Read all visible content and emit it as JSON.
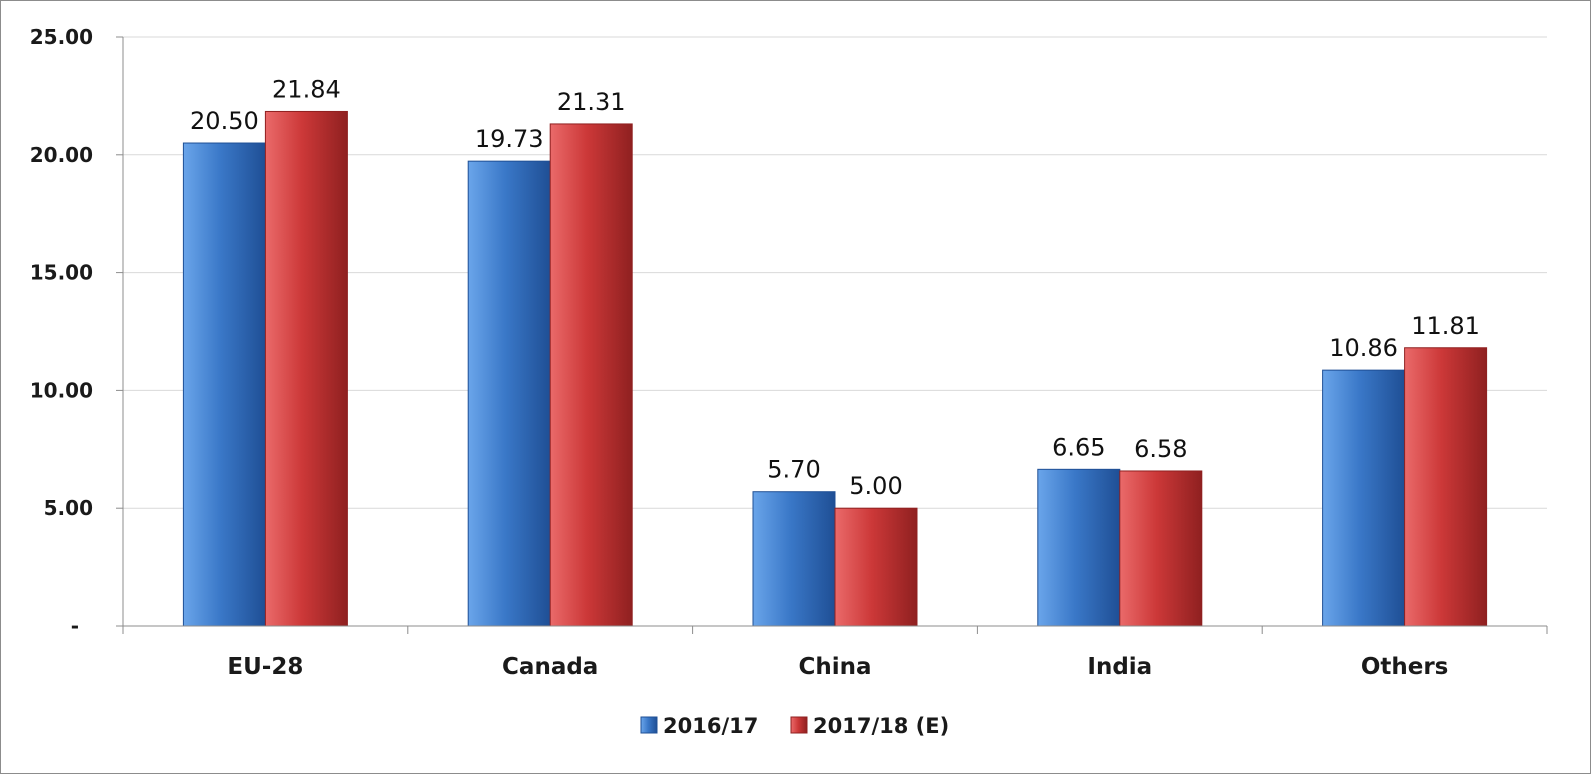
{
  "chart_data": {
    "type": "bar",
    "title": "",
    "xlabel": "",
    "ylabel": "",
    "categories": [
      "EU-28",
      "Canada",
      "China",
      "India",
      "Others"
    ],
    "series": [
      {
        "name": "2016/17",
        "values": [
          20.5,
          19.73,
          5.7,
          6.65,
          10.86
        ],
        "labels": [
          "20.50",
          "19.73",
          "5.70",
          "6.65",
          "10.86"
        ]
      },
      {
        "name": "2017/18 (E)",
        "values": [
          21.84,
          21.31,
          5.0,
          6.58,
          11.81
        ],
        "labels": [
          "21.84",
          "21.31",
          "5.00",
          "6.58",
          "11.81"
        ]
      }
    ],
    "ylim": [
      0,
      25
    ],
    "yticks": [
      0,
      5,
      10,
      15,
      20,
      25
    ],
    "ytick_labels": [
      "-",
      "5.00",
      "10.00",
      "15.00",
      "20.00",
      "25.00"
    ],
    "grid": true,
    "legend": "bottom-center",
    "colors": {
      "series": [
        "#3a78c8",
        "#cc3838"
      ],
      "series_light": [
        "#6aa5ea",
        "#ea6a6a"
      ],
      "series_dark": [
        "#1f4f95",
        "#8f2020"
      ],
      "grid": "#d9d9d9",
      "axis": "#8c8c8c"
    }
  }
}
